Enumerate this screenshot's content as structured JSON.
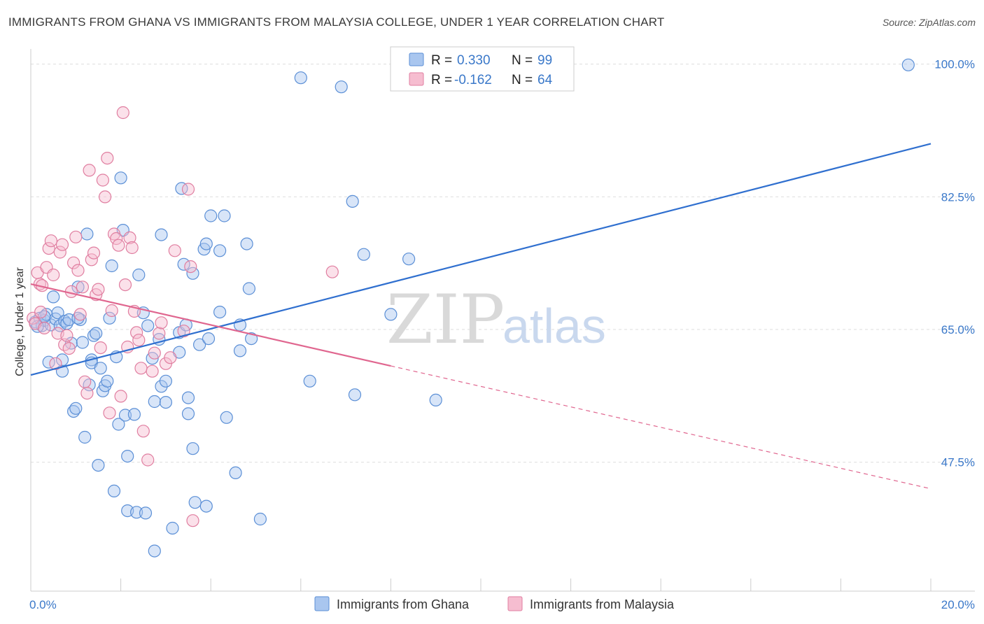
{
  "header": {
    "title": "IMMIGRANTS FROM GHANA VS IMMIGRANTS FROM MALAYSIA COLLEGE, UNDER 1 YEAR CORRELATION CHART",
    "source": "Source: ZipAtlas.com"
  },
  "watermark": {
    "zip": "ZIP",
    "atlas": "atlas"
  },
  "legend": {
    "r_label": "R =",
    "n_label": "N =",
    "series": [
      {
        "name": "Immigrants from Ghana",
        "r": "0.330",
        "n": "99",
        "fill": "#a9c6ef",
        "stroke": "#5b8fd6"
      },
      {
        "name": "Immigrants from Malaysia",
        "r": "-0.162",
        "n": "64",
        "fill": "#f6bdd0",
        "stroke": "#e07ea0"
      }
    ]
  },
  "colors": {
    "ghana_line": "#2f6fcf",
    "malaysia_line": "#e0668f",
    "grid": "#dddddd",
    "tick_text": "#3a78c9"
  },
  "chart_data": {
    "type": "scatter",
    "title": "IMMIGRANTS FROM GHANA VS IMMIGRANTS FROM MALAYSIA COLLEGE, UNDER 1 YEAR CORRELATION CHART",
    "xlabel": "",
    "ylabel": "College, Under 1 year",
    "xlim": [
      0,
      20
    ],
    "ylim": [
      30.5,
      102
    ],
    "x_tick_labels": [
      {
        "value": 0,
        "label": "0.0%"
      },
      {
        "value": 20,
        "label": "20.0%"
      }
    ],
    "y_ticks": [
      {
        "value": 100,
        "label": "100.0%"
      },
      {
        "value": 82.5,
        "label": "82.5%"
      },
      {
        "value": 65,
        "label": "65.0%"
      },
      {
        "value": 47.5,
        "label": "47.5%"
      }
    ],
    "series": [
      {
        "name": "Immigrants from Ghana",
        "trend": {
          "x": [
            0,
            20
          ],
          "y": [
            59.0,
            89.5
          ],
          "dashed_from": null
        },
        "points": [
          [
            0.1,
            66.0
          ],
          [
            0.2,
            66.5
          ],
          [
            0.25,
            65.5
          ],
          [
            0.3,
            66.2
          ],
          [
            0.35,
            67.0
          ],
          [
            0.4,
            60.7
          ],
          [
            0.45,
            65.6
          ],
          [
            0.5,
            69.3
          ],
          [
            0.55,
            66.4
          ],
          [
            0.6,
            67.2
          ],
          [
            0.65,
            65.5
          ],
          [
            0.7,
            61.0
          ],
          [
            0.7,
            59.5
          ],
          [
            0.75,
            66.1
          ],
          [
            0.8,
            65.8
          ],
          [
            0.85,
            66.3
          ],
          [
            0.9,
            63.2
          ],
          [
            0.95,
            54.2
          ],
          [
            1.0,
            54.6
          ],
          [
            1.05,
            70.6
          ],
          [
            1.1,
            66.3
          ],
          [
            1.15,
            63.3
          ],
          [
            1.2,
            50.8
          ],
          [
            1.25,
            77.6
          ],
          [
            1.3,
            57.7
          ],
          [
            1.35,
            61.0
          ],
          [
            1.35,
            60.6
          ],
          [
            1.4,
            64.2
          ],
          [
            1.45,
            64.5
          ],
          [
            1.5,
            47.1
          ],
          [
            1.55,
            59.9
          ],
          [
            1.6,
            56.9
          ],
          [
            1.65,
            57.6
          ],
          [
            1.7,
            58.2
          ],
          [
            1.75,
            66.5
          ],
          [
            1.8,
            73.4
          ],
          [
            1.85,
            43.7
          ],
          [
            1.9,
            61.4
          ],
          [
            1.95,
            52.5
          ],
          [
            2.0,
            85.0
          ],
          [
            2.05,
            78.1
          ],
          [
            2.1,
            53.7
          ],
          [
            2.15,
            41.1
          ],
          [
            2.15,
            48.3
          ],
          [
            2.3,
            53.8
          ],
          [
            2.35,
            40.9
          ],
          [
            2.4,
            72.2
          ],
          [
            2.55,
            40.8
          ],
          [
            2.5,
            67.2
          ],
          [
            2.6,
            65.5
          ],
          [
            2.7,
            61.2
          ],
          [
            2.75,
            55.5
          ],
          [
            2.75,
            35.8
          ],
          [
            2.85,
            63.7
          ],
          [
            2.9,
            57.5
          ],
          [
            2.9,
            77.5
          ],
          [
            3.0,
            58.2
          ],
          [
            3.0,
            55.4
          ],
          [
            3.15,
            38.8
          ],
          [
            3.3,
            62.0
          ],
          [
            3.3,
            64.6
          ],
          [
            3.35,
            83.6
          ],
          [
            3.4,
            73.6
          ],
          [
            3.45,
            65.6
          ],
          [
            3.5,
            53.9
          ],
          [
            3.5,
            56.0
          ],
          [
            3.6,
            72.4
          ],
          [
            3.6,
            49.3
          ],
          [
            3.65,
            42.2
          ],
          [
            3.75,
            63.0
          ],
          [
            3.9,
            41.7
          ],
          [
            3.85,
            75.6
          ],
          [
            3.9,
            76.3
          ],
          [
            3.95,
            63.8
          ],
          [
            4.0,
            80.0
          ],
          [
            4.2,
            67.3
          ],
          [
            4.2,
            75.4
          ],
          [
            4.3,
            80.0
          ],
          [
            4.35,
            53.4
          ],
          [
            4.55,
            46.1
          ],
          [
            4.65,
            62.2
          ],
          [
            4.65,
            65.6
          ],
          [
            4.8,
            76.3
          ],
          [
            4.85,
            70.4
          ],
          [
            4.9,
            63.8
          ],
          [
            5.1,
            40.0
          ],
          [
            6.0,
            98.2
          ],
          [
            6.2,
            58.2
          ],
          [
            6.9,
            97.0
          ],
          [
            7.15,
            81.9
          ],
          [
            7.2,
            56.4
          ],
          [
            7.4,
            74.9
          ],
          [
            8.0,
            67.0
          ],
          [
            8.4,
            74.3
          ],
          [
            9.0,
            55.7
          ],
          [
            19.5,
            99.9
          ],
          [
            0.15,
            65.4
          ],
          [
            0.3,
            66.7
          ],
          [
            1.05,
            66.5
          ]
        ]
      },
      {
        "name": "Immigrants from Malaysia",
        "trend": {
          "x": [
            0,
            20
          ],
          "y": [
            71.0,
            44.0
          ],
          "dashed_from": 8.0
        },
        "points": [
          [
            0.05,
            66.5
          ],
          [
            0.1,
            65.8
          ],
          [
            0.15,
            72.5
          ],
          [
            0.2,
            71.0
          ],
          [
            0.22,
            67.3
          ],
          [
            0.25,
            70.8
          ],
          [
            0.3,
            65.2
          ],
          [
            0.35,
            73.2
          ],
          [
            0.4,
            75.7
          ],
          [
            0.45,
            76.7
          ],
          [
            0.5,
            72.2
          ],
          [
            0.55,
            60.5
          ],
          [
            0.6,
            64.5
          ],
          [
            0.65,
            75.2
          ],
          [
            0.7,
            76.2
          ],
          [
            0.75,
            63.0
          ],
          [
            0.8,
            64.2
          ],
          [
            0.85,
            62.5
          ],
          [
            0.9,
            70.0
          ],
          [
            0.95,
            73.8
          ],
          [
            1.0,
            77.2
          ],
          [
            1.05,
            72.8
          ],
          [
            1.1,
            67.0
          ],
          [
            1.15,
            70.6
          ],
          [
            1.2,
            58.1
          ],
          [
            1.25,
            56.6
          ],
          [
            1.3,
            86.0
          ],
          [
            1.35,
            74.2
          ],
          [
            1.4,
            75.1
          ],
          [
            1.45,
            69.6
          ],
          [
            1.5,
            70.3
          ],
          [
            1.55,
            62.6
          ],
          [
            1.6,
            84.7
          ],
          [
            1.65,
            82.5
          ],
          [
            1.7,
            87.6
          ],
          [
            1.75,
            54.0
          ],
          [
            1.8,
            67.5
          ],
          [
            1.85,
            77.6
          ],
          [
            1.9,
            77.0
          ],
          [
            1.95,
            76.1
          ],
          [
            2.0,
            56.2
          ],
          [
            2.05,
            93.6
          ],
          [
            2.1,
            70.9
          ],
          [
            2.15,
            62.7
          ],
          [
            2.2,
            77.1
          ],
          [
            2.25,
            75.8
          ],
          [
            2.3,
            67.4
          ],
          [
            2.35,
            64.6
          ],
          [
            2.4,
            63.6
          ],
          [
            2.45,
            59.9
          ],
          [
            2.5,
            51.6
          ],
          [
            2.6,
            47.8
          ],
          [
            2.7,
            59.5
          ],
          [
            2.75,
            61.9
          ],
          [
            2.85,
            64.5
          ],
          [
            2.9,
            65.9
          ],
          [
            3.0,
            60.5
          ],
          [
            3.1,
            61.3
          ],
          [
            3.2,
            75.4
          ],
          [
            3.4,
            64.8
          ],
          [
            3.5,
            83.5
          ],
          [
            3.55,
            73.3
          ],
          [
            3.6,
            39.8
          ],
          [
            6.7,
            72.6
          ]
        ]
      }
    ]
  },
  "bottom_legend": {
    "items": [
      "Immigrants from Ghana",
      "Immigrants from Malaysia"
    ]
  }
}
